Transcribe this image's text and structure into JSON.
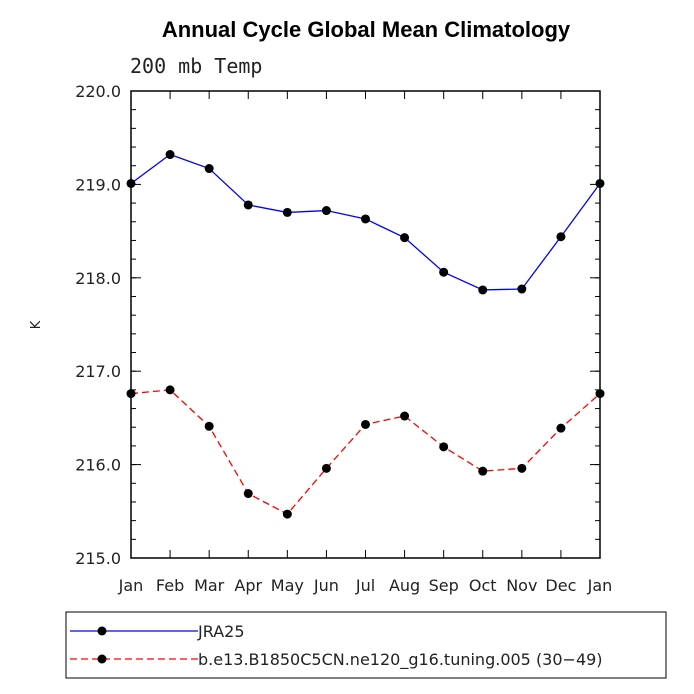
{
  "chart_data": {
    "type": "line",
    "title": "Annual Cycle Global Mean Climatology",
    "subtitle": "200 mb Temp",
    "xlabel": "",
    "ylabel": "K",
    "categories": [
      "Jan",
      "Feb",
      "Mar",
      "Apr",
      "May",
      "Jun",
      "Jul",
      "Aug",
      "Sep",
      "Oct",
      "Nov",
      "Dec",
      "Jan"
    ],
    "ylim": [
      215.0,
      220.0
    ],
    "yticks": [
      215.0,
      216.0,
      217.0,
      218.0,
      219.0,
      220.0
    ],
    "ytick_labels": [
      "215.0",
      "216.0",
      "217.0",
      "218.0",
      "219.0",
      "220.0"
    ],
    "grid": false,
    "legend_position": "bottom",
    "series": [
      {
        "name": "JRA25",
        "color": "#0000ff",
        "dashed": false,
        "values": [
          219.01,
          219.32,
          219.17,
          218.78,
          218.7,
          218.72,
          218.63,
          218.43,
          218.06,
          217.87,
          217.88,
          218.44,
          219.01
        ]
      },
      {
        "name": "b.e13.B1850C5CN.ne120_g16.tuning.005 (30−49)",
        "color": "#ff0000",
        "dashed": true,
        "values": [
          216.76,
          216.8,
          216.41,
          215.69,
          215.47,
          215.96,
          216.43,
          216.52,
          216.19,
          215.93,
          215.96,
          216.39,
          216.76
        ]
      }
    ]
  }
}
